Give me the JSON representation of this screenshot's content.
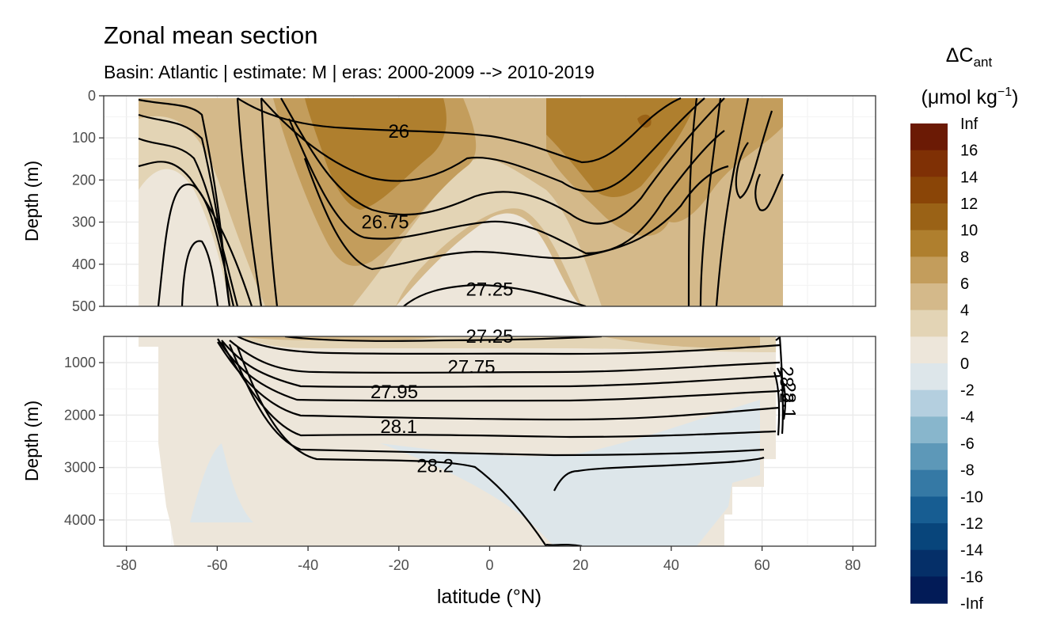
{
  "chart_data": {
    "type": "heatmap",
    "title": "Zonal mean section",
    "subtitle": "Basin: Atlantic | estimate: M  | eras: 2000-2009 --> 2010-2019",
    "xlabel": "latitude (°N)",
    "ylabel": "Depth (m)",
    "xlim": [
      -85,
      85
    ],
    "x_ticks": [
      "-80",
      "-60",
      "-40",
      "-20",
      "0",
      "20",
      "40",
      "60",
      "80"
    ],
    "panels": [
      {
        "name": "upper",
        "ylim": [
          500,
          0
        ],
        "y_ticks": [
          "0",
          "100",
          "200",
          "300",
          "400",
          "500"
        ],
        "density_labels": [
          {
            "text": "26",
            "lat": -20,
            "depth": 85
          },
          {
            "text": "26.75",
            "lat": -23,
            "depth": 300
          },
          {
            "text": "27.25",
            "lat": 0,
            "depth": 460
          }
        ]
      },
      {
        "name": "lower",
        "ylim": [
          4500,
          500
        ],
        "y_ticks": [
          "1000",
          "2000",
          "3000",
          "4000"
        ],
        "density_labels": [
          {
            "text": "27.25",
            "lat": 0,
            "depth": 500
          },
          {
            "text": "27.75",
            "lat": -4,
            "depth": 1080
          },
          {
            "text": "27.95",
            "lat": -21,
            "depth": 1560
          },
          {
            "text": "28.1",
            "lat": -20,
            "depth": 2220
          },
          {
            "text": "28.2",
            "lat": -12,
            "depth": 2970
          },
          {
            "text": "28.2",
            "lat": 64,
            "depth": 1300
          },
          {
            "text": "28.1",
            "lat": 64.5,
            "depth": 1600
          }
        ]
      }
    ],
    "legend": {
      "title_main": "ΔC",
      "title_sub": "ant",
      "unit_main": "(μmol kg",
      "unit_sup": "−1",
      "unit_end": ")",
      "placement": "right",
      "labels": [
        "Inf",
        "16",
        "14",
        "12",
        "10",
        "8",
        "6",
        "4",
        "2",
        "0",
        "-2",
        "-4",
        "-6",
        "-8",
        "-10",
        "-12",
        "-14",
        "-16",
        "-Inf"
      ],
      "colors": [
        "#6b1a05",
        "#7f3005",
        "#8a4507",
        "#9a6216",
        "#af7f2e",
        "#c39d5c",
        "#d4b98a",
        "#e3d4b5",
        "#ede6da",
        "#dde6ea",
        "#b4cfdf",
        "#88b6cc",
        "#5d98b8",
        "#3579a5",
        "#175d92",
        "#08457b",
        "#052f68",
        "#021b57"
      ]
    }
  }
}
